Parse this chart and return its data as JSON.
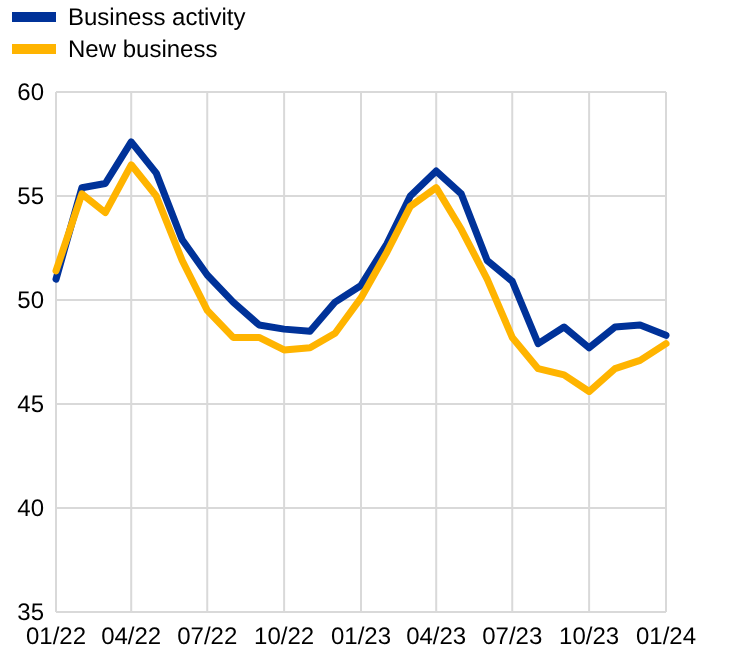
{
  "chart_data": {
    "type": "line",
    "x": [
      "2022-01",
      "2022-02",
      "2022-03",
      "2022-04",
      "2022-05",
      "2022-06",
      "2022-07",
      "2022-08",
      "2022-09",
      "2022-10",
      "2022-11",
      "2022-12",
      "2023-01",
      "2023-02",
      "2023-03",
      "2023-04",
      "2023-05",
      "2023-06",
      "2023-07",
      "2023-08",
      "2023-09",
      "2023-10",
      "2023-11",
      "2023-12",
      "2024-01"
    ],
    "series": [
      {
        "name": "Business activity",
        "color": "#003299",
        "values": [
          51.0,
          55.4,
          55.6,
          57.6,
          56.1,
          52.9,
          51.2,
          49.9,
          48.8,
          48.6,
          48.5,
          49.9,
          50.7,
          52.7,
          55.0,
          56.2,
          55.1,
          51.9,
          50.9,
          47.9,
          48.7,
          47.7,
          48.7,
          48.8,
          48.3
        ]
      },
      {
        "name": "New business",
        "color": "#ffb400",
        "values": [
          51.4,
          55.1,
          54.2,
          56.5,
          55.0,
          51.9,
          49.5,
          48.2,
          48.2,
          47.6,
          47.7,
          48.4,
          50.1,
          52.3,
          54.5,
          55.4,
          53.4,
          51.0,
          48.2,
          46.7,
          46.4,
          45.6,
          46.7,
          47.1,
          47.9
        ]
      }
    ],
    "xlim": [
      "2022-01",
      "2024-01"
    ],
    "xticks": [
      {
        "value": "2022-01",
        "label": "01/22"
      },
      {
        "value": "2022-04",
        "label": "04/22"
      },
      {
        "value": "2022-07",
        "label": "07/22"
      },
      {
        "value": "2022-10",
        "label": "10/22"
      },
      {
        "value": "2023-01",
        "label": "01/23"
      },
      {
        "value": "2023-04",
        "label": "04/23"
      },
      {
        "value": "2023-07",
        "label": "07/23"
      },
      {
        "value": "2023-10",
        "label": "10/23"
      },
      {
        "value": "2024-01",
        "label": "01/24"
      }
    ],
    "ylim": [
      35,
      60
    ],
    "yticks": [
      35,
      40,
      45,
      50,
      55,
      60
    ],
    "grid": true,
    "legend": "top left"
  }
}
